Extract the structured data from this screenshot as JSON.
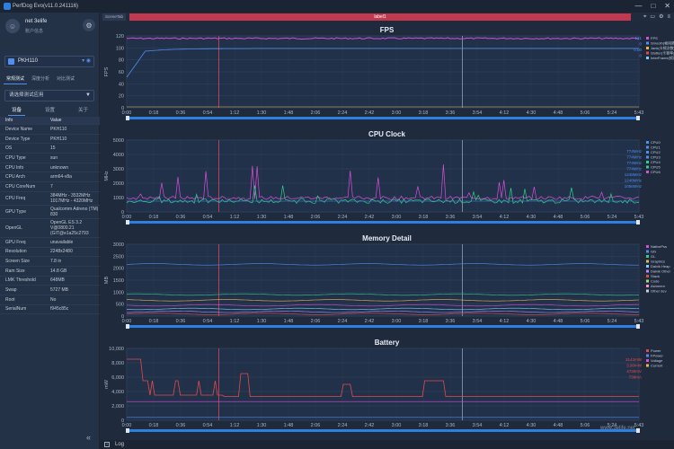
{
  "window": {
    "title": "PerfDog Evo(v11.0.241116)",
    "controls": [
      "—",
      "□",
      "✕"
    ]
  },
  "user": {
    "name": "net 3elife",
    "subtitle": "账户信息"
  },
  "device": {
    "name": "PKH110"
  },
  "mode_tabs": [
    "常规测试",
    "深度分析",
    "对比测试"
  ],
  "app_select": {
    "placeholder": "请选择测试应用"
  },
  "info_tabs": [
    "设备",
    "设置",
    "关于"
  ],
  "info_table": {
    "headers": [
      "Info",
      "Value"
    ],
    "rows": [
      [
        "Device Name",
        "PKH110"
      ],
      [
        "Device Type",
        "PKH110"
      ],
      [
        "OS",
        "15"
      ],
      [
        "CPU Type",
        "sun"
      ],
      [
        "CPU Info",
        "unknown"
      ],
      [
        "CPU Arch",
        "arm64-v8a"
      ],
      [
        "CPU CoreNum",
        "7"
      ],
      [
        "CPU Freq",
        "384MHz - 3532MHz\n1017MHz - 4320MHz"
      ],
      [
        "GPU Type",
        "Qualcomm Adreno (TM) 830"
      ],
      [
        "OpenGL",
        "OpenGL ES 3.2 V@0800.21 (GIT@e1a25c2793"
      ],
      [
        "GPU Freq",
        "unavailable"
      ],
      [
        "Resolution",
        "2248x2480"
      ],
      [
        "Screen Size",
        "7.8 in"
      ],
      [
        "Ram Size",
        "14.8 GB"
      ],
      [
        "LMK Threshold",
        "648MB"
      ],
      [
        "Swap",
        "5727 MB"
      ],
      [
        "Root",
        "No"
      ],
      [
        "SerialNum",
        "f945c85c"
      ]
    ]
  },
  "tabs": {
    "scene": "SceneTab",
    "label": "label1"
  },
  "time_ticks": [
    "0:00",
    "0:18",
    "0:36",
    "0:54",
    "1:12",
    "1:30",
    "1:48",
    "2:06",
    "2:24",
    "2:42",
    "3:00",
    "3:18",
    "3:36",
    "3:54",
    "4:12",
    "4:30",
    "4:48",
    "5:06",
    "5:24",
    "5:43"
  ],
  "bottom": {
    "log_label": "Log"
  },
  "watermark": "www.3elife.net",
  "colors": {
    "accent": "#2f7fe0",
    "label_tab": "#c0394e",
    "marker": "#d9465a",
    "text_blue": "#4f8ff0"
  },
  "charts": [
    {
      "title": "FPS",
      "ylabel": "FPS",
      "y_ticks": [
        "0",
        "20",
        "40",
        "60",
        "80",
        "100",
        "120"
      ],
      "legend": [
        "FPS",
        "Smooth(帧间隔)",
        "Jank(卡顿次数)",
        "Stutter(卡顿率)",
        "InterFrame(帧间隔)"
      ],
      "legend_colors": [
        "#d84fd8",
        "#4f8ff0",
        "#e8b84a",
        "#e24a4a",
        "#7fd0ff"
      ],
      "right_values": [
        "121",
        "0",
        "0.00",
        "0"
      ]
    },
    {
      "title": "CPU Clock",
      "ylabel": "MHz",
      "y_ticks": [
        "0",
        "1000",
        "2000",
        "3000",
        "4000",
        "5000"
      ],
      "legend": [
        "CPU0",
        "CPU1",
        "CPU2",
        "CPU3",
        "CPU4",
        "CPU5",
        "CPU6"
      ],
      "legend_colors": [
        "#4f8ff0",
        "#4f8ff0",
        "#4f8ff0",
        "#4f8ff0",
        "#2fd08a",
        "#2fd08a",
        "#d84fd8"
      ],
      "right_values": [
        "774MHz",
        "774MHz",
        "774MHz",
        "774MHz",
        "1248MHz",
        "1248MHz",
        "1056MHz"
      ]
    },
    {
      "title": "Memory Detail",
      "ylabel": "MB",
      "y_ticks": [
        "0",
        "500",
        "1000",
        "1500",
        "2000",
        "2500",
        "3000"
      ],
      "legend": [
        "NativePss",
        "Gfx",
        "GL",
        "Graphics",
        "Dalvik Heap",
        "Dalvik Other",
        "Stack",
        "Code",
        "Ashmem",
        "Other dev"
      ],
      "legend_colors": [
        "#d84fd8",
        "#4f8ff0",
        "#2fd08a",
        "#e8b84a",
        "#7fd0ff",
        "#b08cff",
        "#e24a4a",
        "#9fe070",
        "#ff8fd0",
        "#c8d0dc"
      ],
      "right_values": []
    },
    {
      "title": "Battery",
      "ylabel": "mW",
      "y_ticks": [
        "0",
        "2,000",
        "4,000",
        "6,000",
        "8,000",
        "10,000"
      ],
      "legend": [
        "Power",
        "FPower",
        "Voltage",
        "Current"
      ],
      "legend_colors": [
        "#e24a4a",
        "#4f8ff0",
        "#d84fd8",
        "#e8b84a"
      ],
      "right_values": [
        "3142mW",
        "3.90mW",
        "4730mV",
        "739mA"
      ]
    }
  ]
}
